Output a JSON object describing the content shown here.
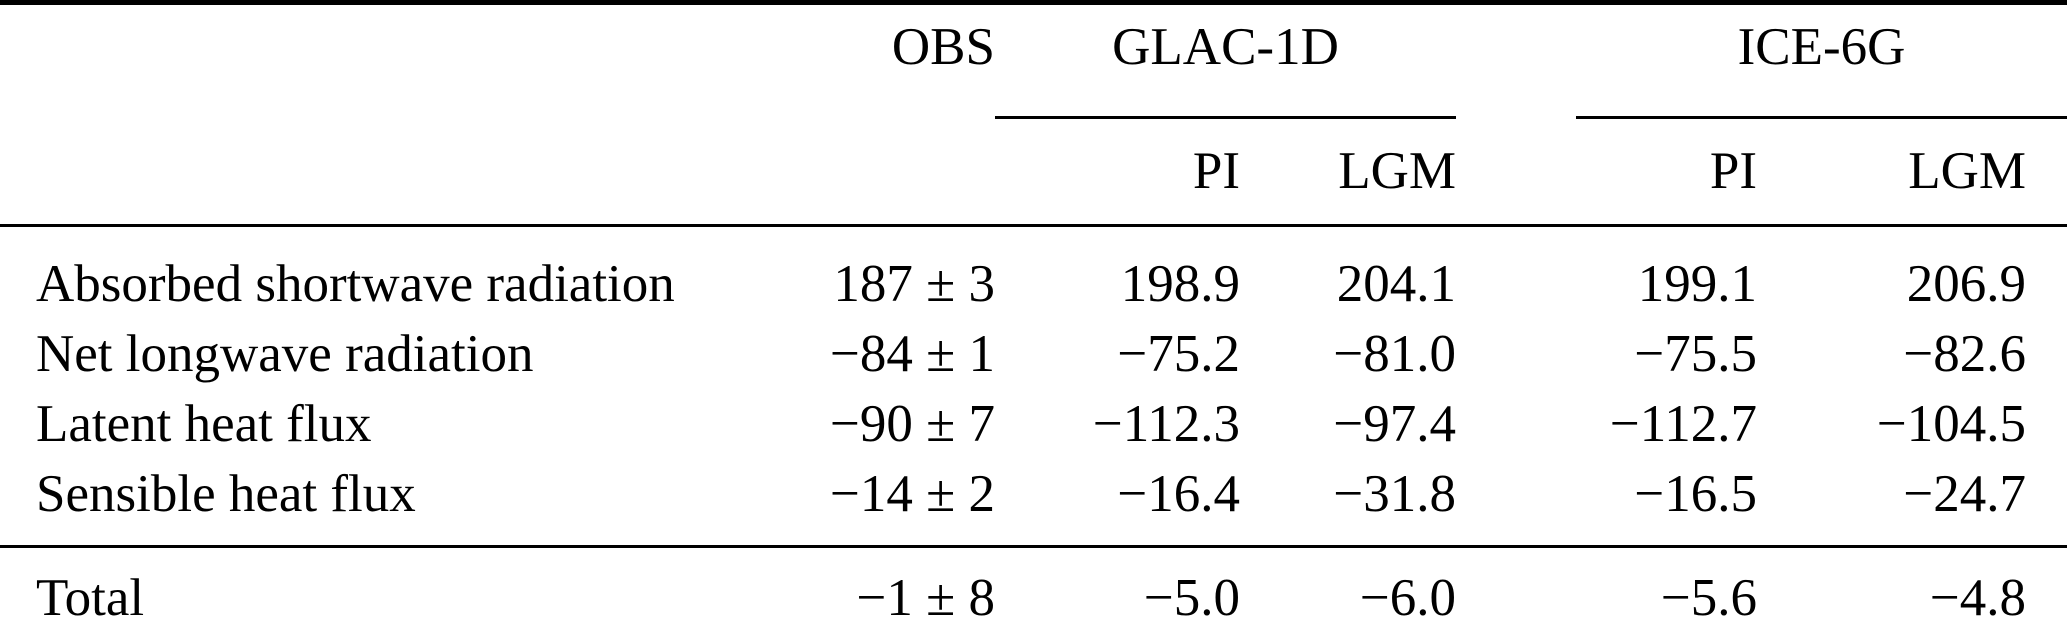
{
  "table": {
    "header": {
      "obs_label": "OBS",
      "groups": [
        {
          "label": "GLAC-1D",
          "sub_columns": [
            "PI",
            "LGM"
          ]
        },
        {
          "label": "ICE-6G",
          "sub_columns": [
            "PI",
            "LGM"
          ]
        }
      ]
    },
    "rows": [
      {
        "label": "Absorbed shortwave radiation",
        "values": [
          "187 ± 3",
          "198.9",
          "204.1",
          "199.1",
          "206.9"
        ]
      },
      {
        "label": "Net longwave radiation",
        "values": [
          "−84 ± 1",
          "−75.2",
          "−81.0",
          "−75.5",
          "−82.6"
        ]
      },
      {
        "label": "Latent heat flux",
        "values": [
          "−90 ± 7",
          "−112.3",
          "−97.4",
          "−112.7",
          "−104.5"
        ]
      },
      {
        "label": "Sensible heat flux",
        "values": [
          "−14 ± 2",
          "−16.4",
          "−31.8",
          "−16.5",
          "−24.7"
        ]
      }
    ],
    "total": {
      "label": "Total",
      "values": [
        "−1 ± 8",
        "−5.0",
        "−6.0",
        "−5.6",
        "−4.8"
      ]
    }
  },
  "colors": {
    "text": "#000000",
    "background": "#ffffff",
    "rule": "#000000"
  },
  "chart_data": {
    "type": "table",
    "columns": [
      "",
      "OBS",
      "GLAC-1D PI",
      "GLAC-1D LGM",
      "ICE-6G PI",
      "ICE-6G LGM"
    ],
    "rows": [
      [
        "Absorbed shortwave radiation",
        "187 ± 3",
        198.9,
        204.1,
        199.1,
        206.9
      ],
      [
        "Net longwave radiation",
        "−84 ± 1",
        -75.2,
        -81.0,
        -75.5,
        -82.6
      ],
      [
        "Latent heat flux",
        "−90 ± 7",
        -112.3,
        -97.4,
        -112.7,
        -104.5
      ],
      [
        "Sensible heat flux",
        "−14 ± 2",
        -16.4,
        -31.8,
        -16.5,
        -24.7
      ],
      [
        "Total",
        "−1 ± 8",
        -5.0,
        -6.0,
        -5.6,
        -4.8
      ]
    ]
  }
}
